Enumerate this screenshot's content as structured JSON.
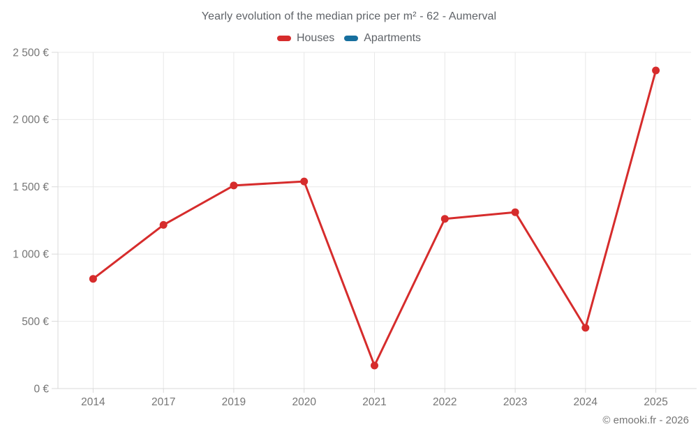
{
  "footer_note": "© emooki.fr - 2026",
  "colors": {
    "houses": "#d62c2c",
    "apartments": "#176f9e",
    "grid_line": "#e8e8e8",
    "axis_line": "#d9d9d9",
    "tick_label": "#757575",
    "title_text": "#5f6368"
  },
  "chart_data": {
    "type": "line",
    "title": "Yearly evolution of the median price per m² - 62 - Aumerval",
    "categories": [
      "2014",
      "2017",
      "2019",
      "2020",
      "2021",
      "2022",
      "2023",
      "2024",
      "2025"
    ],
    "series": [
      {
        "name": "Houses",
        "color": "#d62c2c",
        "values": [
          816,
          1217,
          1510,
          1540,
          171,
          1262,
          1311,
          452,
          2365
        ]
      },
      {
        "name": "Apartments",
        "color": "#176f9e",
        "values": []
      }
    ],
    "xlabel": "",
    "ylabel": "",
    "ylim": [
      0,
      2500
    ],
    "ytick_step": 500,
    "ytick_labels": [
      "0 €",
      "500 €",
      "1 000 €",
      "1 500 €",
      "2 000 €",
      "2 500 €"
    ],
    "grid": true,
    "legend_position": "top",
    "marker": "circle"
  }
}
